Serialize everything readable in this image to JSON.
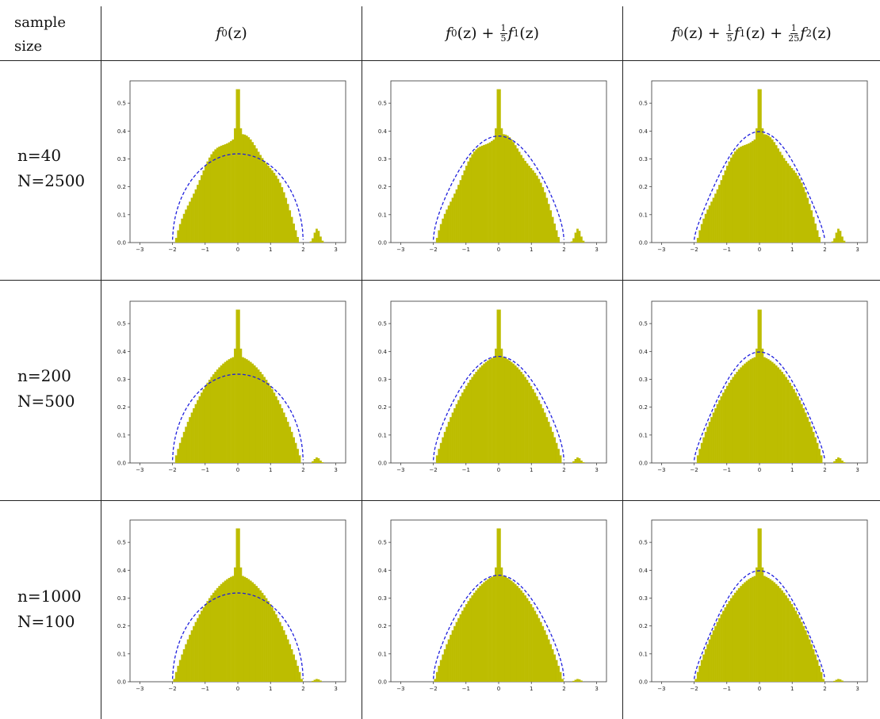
{
  "table": {
    "header_sample": [
      "sample",
      "size"
    ],
    "columns": [
      {
        "main": "f",
        "sub": "0",
        "arg": "(z)"
      },
      {
        "main": "f",
        "sub": "0",
        "arg": "(z) + ",
        "frac1": [
          "1",
          "5"
        ],
        "main2": "f",
        "sub2": "1",
        "arg2": "(z)"
      },
      {
        "main": "f",
        "sub": "0",
        "arg": "(z) + ",
        "frac1": [
          "1",
          "5"
        ],
        "main2": "f",
        "sub2": "1",
        "arg2": "(z) + ",
        "frac2": [
          "1",
          "25"
        ],
        "main3": "f",
        "sub3": "2",
        "arg3": "(z)"
      }
    ],
    "rows": [
      {
        "n": "n=40",
        "N": "N=2500"
      },
      {
        "n": "n=200",
        "N": "N=500"
      },
      {
        "n": "n=1000",
        "N": "N=100"
      }
    ]
  },
  "chart_data": [
    {
      "type": "bar",
      "row": 0,
      "col": 0,
      "overlay": "f0",
      "spike": 0.55,
      "outlier_peak": 0.05,
      "xlim": [
        -3.3,
        3.3
      ],
      "ylim": [
        0,
        0.58
      ],
      "xticks": [
        -3,
        -2,
        -1,
        0,
        1,
        2,
        3
      ],
      "yticks": [
        0.0,
        0.1,
        0.2,
        0.3,
        0.4,
        0.5
      ]
    },
    {
      "type": "bar",
      "row": 0,
      "col": 1,
      "overlay": "f01",
      "spike": 0.55,
      "outlier_peak": 0.05,
      "xlim": [
        -3.3,
        3.3
      ],
      "ylim": [
        0,
        0.58
      ],
      "xticks": [
        -3,
        -2,
        -1,
        0,
        1,
        2,
        3
      ],
      "yticks": [
        0.0,
        0.1,
        0.2,
        0.3,
        0.4,
        0.5
      ]
    },
    {
      "type": "bar",
      "row": 0,
      "col": 2,
      "overlay": "f012",
      "spike": 0.55,
      "outlier_peak": 0.05,
      "xlim": [
        -3.3,
        3.3
      ],
      "ylim": [
        0,
        0.58
      ],
      "xticks": [
        -3,
        -2,
        -1,
        0,
        1,
        2,
        3
      ],
      "yticks": [
        0.0,
        0.1,
        0.2,
        0.3,
        0.4,
        0.5
      ]
    },
    {
      "type": "bar",
      "row": 1,
      "col": 0,
      "overlay": "f0",
      "spike": 0.55,
      "outlier_peak": 0.02,
      "xlim": [
        -3.3,
        3.3
      ],
      "ylim": [
        0,
        0.58
      ],
      "xticks": [
        -3,
        -2,
        -1,
        0,
        1,
        2,
        3
      ],
      "yticks": [
        0.0,
        0.1,
        0.2,
        0.3,
        0.4,
        0.5
      ]
    },
    {
      "type": "bar",
      "row": 1,
      "col": 1,
      "overlay": "f01",
      "spike": 0.55,
      "outlier_peak": 0.02,
      "xlim": [
        -3.3,
        3.3
      ],
      "ylim": [
        0,
        0.58
      ],
      "xticks": [
        -3,
        -2,
        -1,
        0,
        1,
        2,
        3
      ],
      "yticks": [
        0.0,
        0.1,
        0.2,
        0.3,
        0.4,
        0.5
      ]
    },
    {
      "type": "bar",
      "row": 1,
      "col": 2,
      "overlay": "f012",
      "spike": 0.55,
      "outlier_peak": 0.02,
      "xlim": [
        -3.3,
        3.3
      ],
      "ylim": [
        0,
        0.58
      ],
      "xticks": [
        -3,
        -2,
        -1,
        0,
        1,
        2,
        3
      ],
      "yticks": [
        0.0,
        0.1,
        0.2,
        0.3,
        0.4,
        0.5
      ]
    },
    {
      "type": "bar",
      "row": 2,
      "col": 0,
      "overlay": "f0",
      "spike": 0.55,
      "outlier_peak": 0.01,
      "xlim": [
        -3.3,
        3.3
      ],
      "ylim": [
        0,
        0.58
      ],
      "xticks": [
        -3,
        -2,
        -1,
        0,
        1,
        2,
        3
      ],
      "yticks": [
        0.0,
        0.1,
        0.2,
        0.3,
        0.4,
        0.5
      ]
    },
    {
      "type": "bar",
      "row": 2,
      "col": 1,
      "overlay": "f01",
      "spike": 0.55,
      "outlier_peak": 0.01,
      "xlim": [
        -3.3,
        3.3
      ],
      "ylim": [
        0,
        0.58
      ],
      "xticks": [
        -3,
        -2,
        -1,
        0,
        1,
        2,
        3
      ],
      "yticks": [
        0.0,
        0.1,
        0.2,
        0.3,
        0.4,
        0.5
      ]
    },
    {
      "type": "bar",
      "row": 2,
      "col": 2,
      "overlay": "f012",
      "spike": 0.55,
      "outlier_peak": 0.01,
      "xlim": [
        -3.3,
        3.3
      ],
      "ylim": [
        0,
        0.58
      ],
      "xticks": [
        -3,
        -2,
        -1,
        0,
        1,
        2,
        3
      ],
      "yticks": [
        0.0,
        0.1,
        0.2,
        0.3,
        0.4,
        0.5
      ]
    }
  ],
  "colors": {
    "bars": "#bdbd00",
    "curve": "#1f1fdd",
    "axes": "#333333",
    "lines": "#222222"
  }
}
